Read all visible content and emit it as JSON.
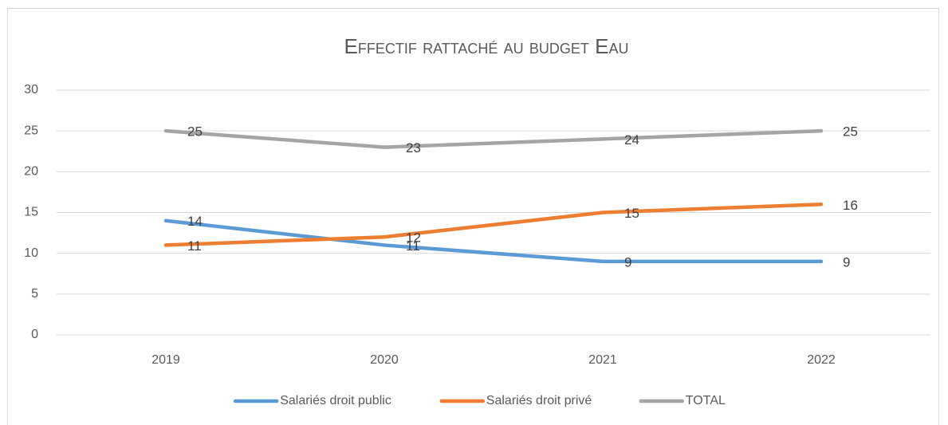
{
  "chart_data": {
    "type": "line",
    "title": "Effectif rattaché au budget Eau",
    "categories": [
      "2019",
      "2020",
      "2021",
      "2022"
    ],
    "series": [
      {
        "name": "Salariés droit public",
        "color": "#5b9bd5",
        "values": [
          14,
          11,
          9,
          9
        ]
      },
      {
        "name": "Salariés droit privé",
        "color": "#ed7d31",
        "values": [
          11,
          12,
          15,
          16
        ]
      },
      {
        "name": "TOTAL",
        "color": "#a5a5a5",
        "values": [
          25,
          23,
          24,
          25
        ]
      }
    ],
    "ylim": [
      0,
      30
    ],
    "yticks": [
      0,
      5,
      10,
      15,
      20,
      25,
      30
    ],
    "grid": true,
    "legend": "bottom"
  }
}
